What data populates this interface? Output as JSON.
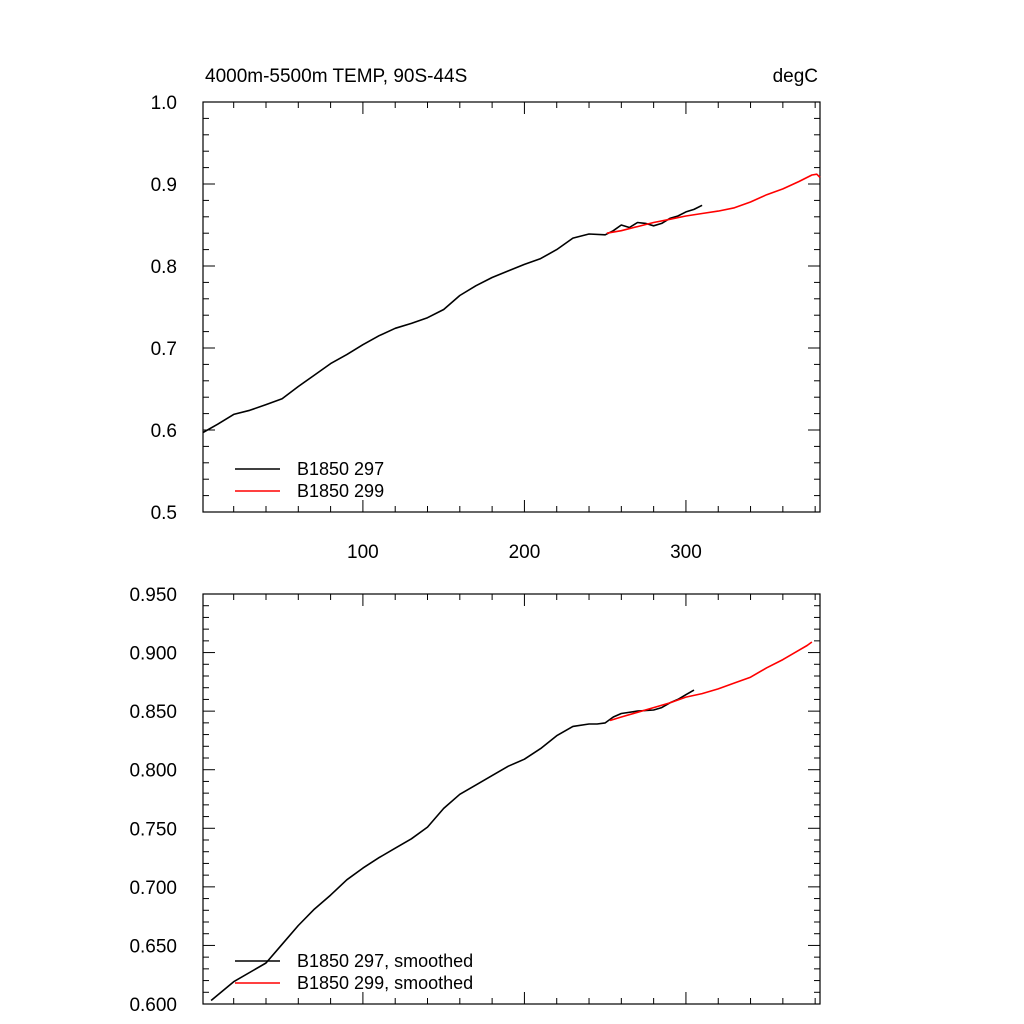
{
  "chart_data": [
    {
      "type": "line",
      "title": "4000m-5500m TEMP, 90S-44S",
      "units": "degC",
      "xlabel": "",
      "ylabel": "",
      "xlim": [
        1,
        383
      ],
      "ylim": [
        0.5,
        1.0
      ],
      "x_ticks": [
        100,
        200,
        300
      ],
      "y_ticks": [
        "0.5",
        "0.6",
        "0.7",
        "0.8",
        "0.9",
        "1.0"
      ],
      "legend_position": "bottom-left",
      "series": [
        {
          "name": "B1850 297",
          "color": "#000000",
          "x": [
            1,
            10,
            20,
            30,
            40,
            50,
            60,
            70,
            80,
            90,
            100,
            110,
            120,
            130,
            140,
            150,
            160,
            170,
            180,
            190,
            200,
            210,
            220,
            230,
            240,
            250,
            255,
            260,
            265,
            270,
            275,
            280,
            285,
            290,
            295,
            300,
            305,
            310
          ],
          "values": [
            0.597,
            0.607,
            0.619,
            0.624,
            0.631,
            0.638,
            0.653,
            0.667,
            0.681,
            0.692,
            0.704,
            0.715,
            0.724,
            0.73,
            0.737,
            0.747,
            0.764,
            0.776,
            0.786,
            0.794,
            0.802,
            0.809,
            0.82,
            0.834,
            0.839,
            0.838,
            0.843,
            0.85,
            0.847,
            0.853,
            0.852,
            0.849,
            0.852,
            0.858,
            0.861,
            0.866,
            0.869,
            0.874
          ]
        },
        {
          "name": "B1850 299",
          "color": "#ff0000",
          "x": [
            251,
            260,
            270,
            280,
            290,
            300,
            310,
            320,
            330,
            340,
            350,
            360,
            370,
            378,
            381,
            383
          ],
          "values": [
            0.84,
            0.843,
            0.848,
            0.853,
            0.857,
            0.861,
            0.864,
            0.867,
            0.871,
            0.878,
            0.887,
            0.894,
            0.903,
            0.911,
            0.912,
            0.908
          ]
        }
      ]
    },
    {
      "type": "line",
      "title": "",
      "xlabel": "",
      "ylabel": "",
      "xlim": [
        1,
        383
      ],
      "ylim": [
        0.6,
        0.95
      ],
      "x_ticks": [
        100,
        200,
        300
      ],
      "y_ticks": [
        "0.600",
        "0.650",
        "0.700",
        "0.750",
        "0.800",
        "0.850",
        "0.900",
        "0.950"
      ],
      "legend_position": "bottom-left",
      "series": [
        {
          "name": "B1850 297, smoothed",
          "color": "#000000",
          "x": [
            6,
            20,
            40,
            50,
            60,
            70,
            80,
            90,
            100,
            110,
            120,
            130,
            140,
            150,
            160,
            170,
            180,
            190,
            200,
            210,
            220,
            230,
            240,
            245,
            250,
            255,
            260,
            270,
            280,
            285,
            290,
            295,
            300,
            305
          ],
          "values": [
            0.603,
            0.619,
            0.635,
            0.651,
            0.667,
            0.681,
            0.693,
            0.706,
            0.716,
            0.725,
            0.733,
            0.741,
            0.751,
            0.767,
            0.779,
            0.787,
            0.795,
            0.803,
            0.809,
            0.818,
            0.829,
            0.837,
            0.839,
            0.839,
            0.84,
            0.845,
            0.848,
            0.85,
            0.851,
            0.853,
            0.857,
            0.86,
            0.864,
            0.868
          ]
        },
        {
          "name": "B1850 299, smoothed",
          "color": "#ff0000",
          "x": [
            253,
            260,
            270,
            280,
            290,
            300,
            310,
            320,
            330,
            340,
            350,
            360,
            370,
            375,
            378
          ],
          "values": [
            0.842,
            0.845,
            0.849,
            0.853,
            0.857,
            0.862,
            0.865,
            0.869,
            0.874,
            0.879,
            0.887,
            0.894,
            0.902,
            0.906,
            0.909
          ]
        }
      ]
    }
  ]
}
